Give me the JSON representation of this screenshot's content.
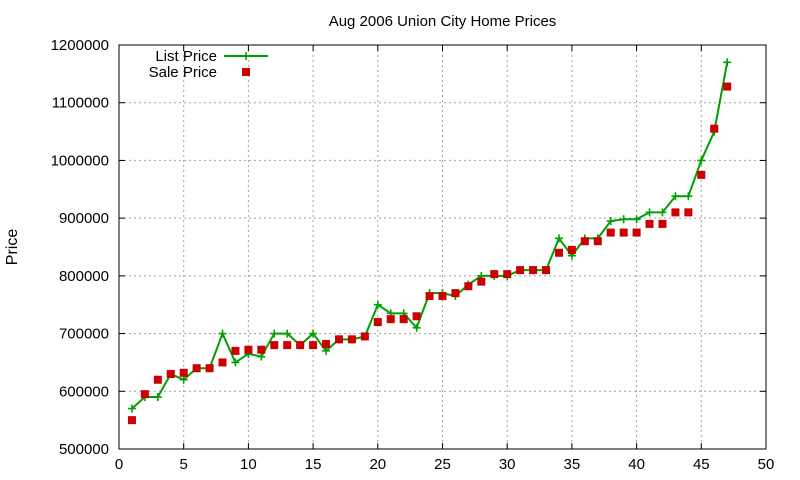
{
  "chart_data": {
    "type": "line",
    "title": "Aug 2006 Union City Home Prices",
    "xlabel": "",
    "ylabel": "Price",
    "xlim": [
      0,
      50
    ],
    "ylim": [
      500000,
      1200000
    ],
    "x_ticks": [
      "0",
      "5",
      "10",
      "15",
      "20",
      "25",
      "30",
      "35",
      "40",
      "45",
      "50"
    ],
    "y_ticks": [
      "500000",
      "600000",
      "700000",
      "800000",
      "900000",
      "1000000",
      "1100000",
      "1200000"
    ],
    "grid": true,
    "legend_position": "top-left",
    "x": [
      1,
      2,
      3,
      4,
      5,
      6,
      7,
      8,
      9,
      10,
      11,
      12,
      13,
      14,
      15,
      16,
      17,
      18,
      19,
      20,
      21,
      22,
      23,
      24,
      25,
      26,
      27,
      28,
      29,
      30,
      31,
      32,
      33,
      34,
      35,
      36,
      37,
      38,
      39,
      40,
      41,
      42,
      43,
      44,
      45,
      46,
      47
    ],
    "series": [
      {
        "name": "List Price",
        "style": "line-plus",
        "color": "#00a000",
        "values": [
          570000,
          590000,
          590000,
          630000,
          620000,
          640000,
          640000,
          700000,
          650000,
          665000,
          660000,
          700000,
          700000,
          680000,
          700000,
          670000,
          690000,
          690000,
          695000,
          750000,
          735000,
          735000,
          710000,
          770000,
          770000,
          765000,
          785000,
          800000,
          800000,
          800000,
          810000,
          810000,
          810000,
          865000,
          835000,
          865000,
          865000,
          895000,
          898000,
          898000,
          910000,
          910000,
          938000,
          938000,
          1000000,
          1050000,
          1170000
        ]
      },
      {
        "name": "Sale Price",
        "style": "square-marker",
        "color": "#cc0000",
        "values": [
          550000,
          595000,
          620000,
          630000,
          632000,
          640000,
          640000,
          650000,
          670000,
          672000,
          672000,
          680000,
          680000,
          680000,
          680000,
          682000,
          690000,
          690000,
          695000,
          720000,
          725000,
          725000,
          730000,
          765000,
          765000,
          770000,
          782000,
          790000,
          803000,
          803000,
          810000,
          810000,
          810000,
          840000,
          845000,
          860000,
          860000,
          875000,
          875000,
          875000,
          890000,
          890000,
          910000,
          910000,
          975000,
          1055000,
          1128000
        ]
      }
    ]
  }
}
